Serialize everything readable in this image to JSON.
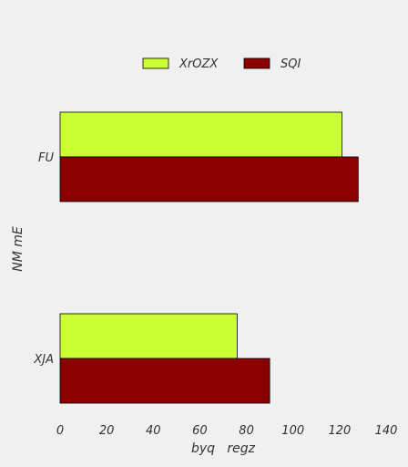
{
  "chart_data": {
    "type": "bar",
    "orientation": "horizontal",
    "categories": [
      "FU",
      "XJA"
    ],
    "series": [
      {
        "name": "XrOZX",
        "color": "#ccff33",
        "values": [
          121,
          76
        ]
      },
      {
        "name": "SQI",
        "color": "#8b0000",
        "values": [
          128,
          90
        ]
      }
    ],
    "xlabel": "byq   regz",
    "ylabel": "NM mE",
    "xlim": [
      0,
      140
    ],
    "xticks": [
      0,
      20,
      40,
      60,
      80,
      100,
      120,
      140
    ],
    "grid": false,
    "legend_position": "top-center",
    "background": "#f0f0f0",
    "bar_edge_color": "#000000"
  }
}
